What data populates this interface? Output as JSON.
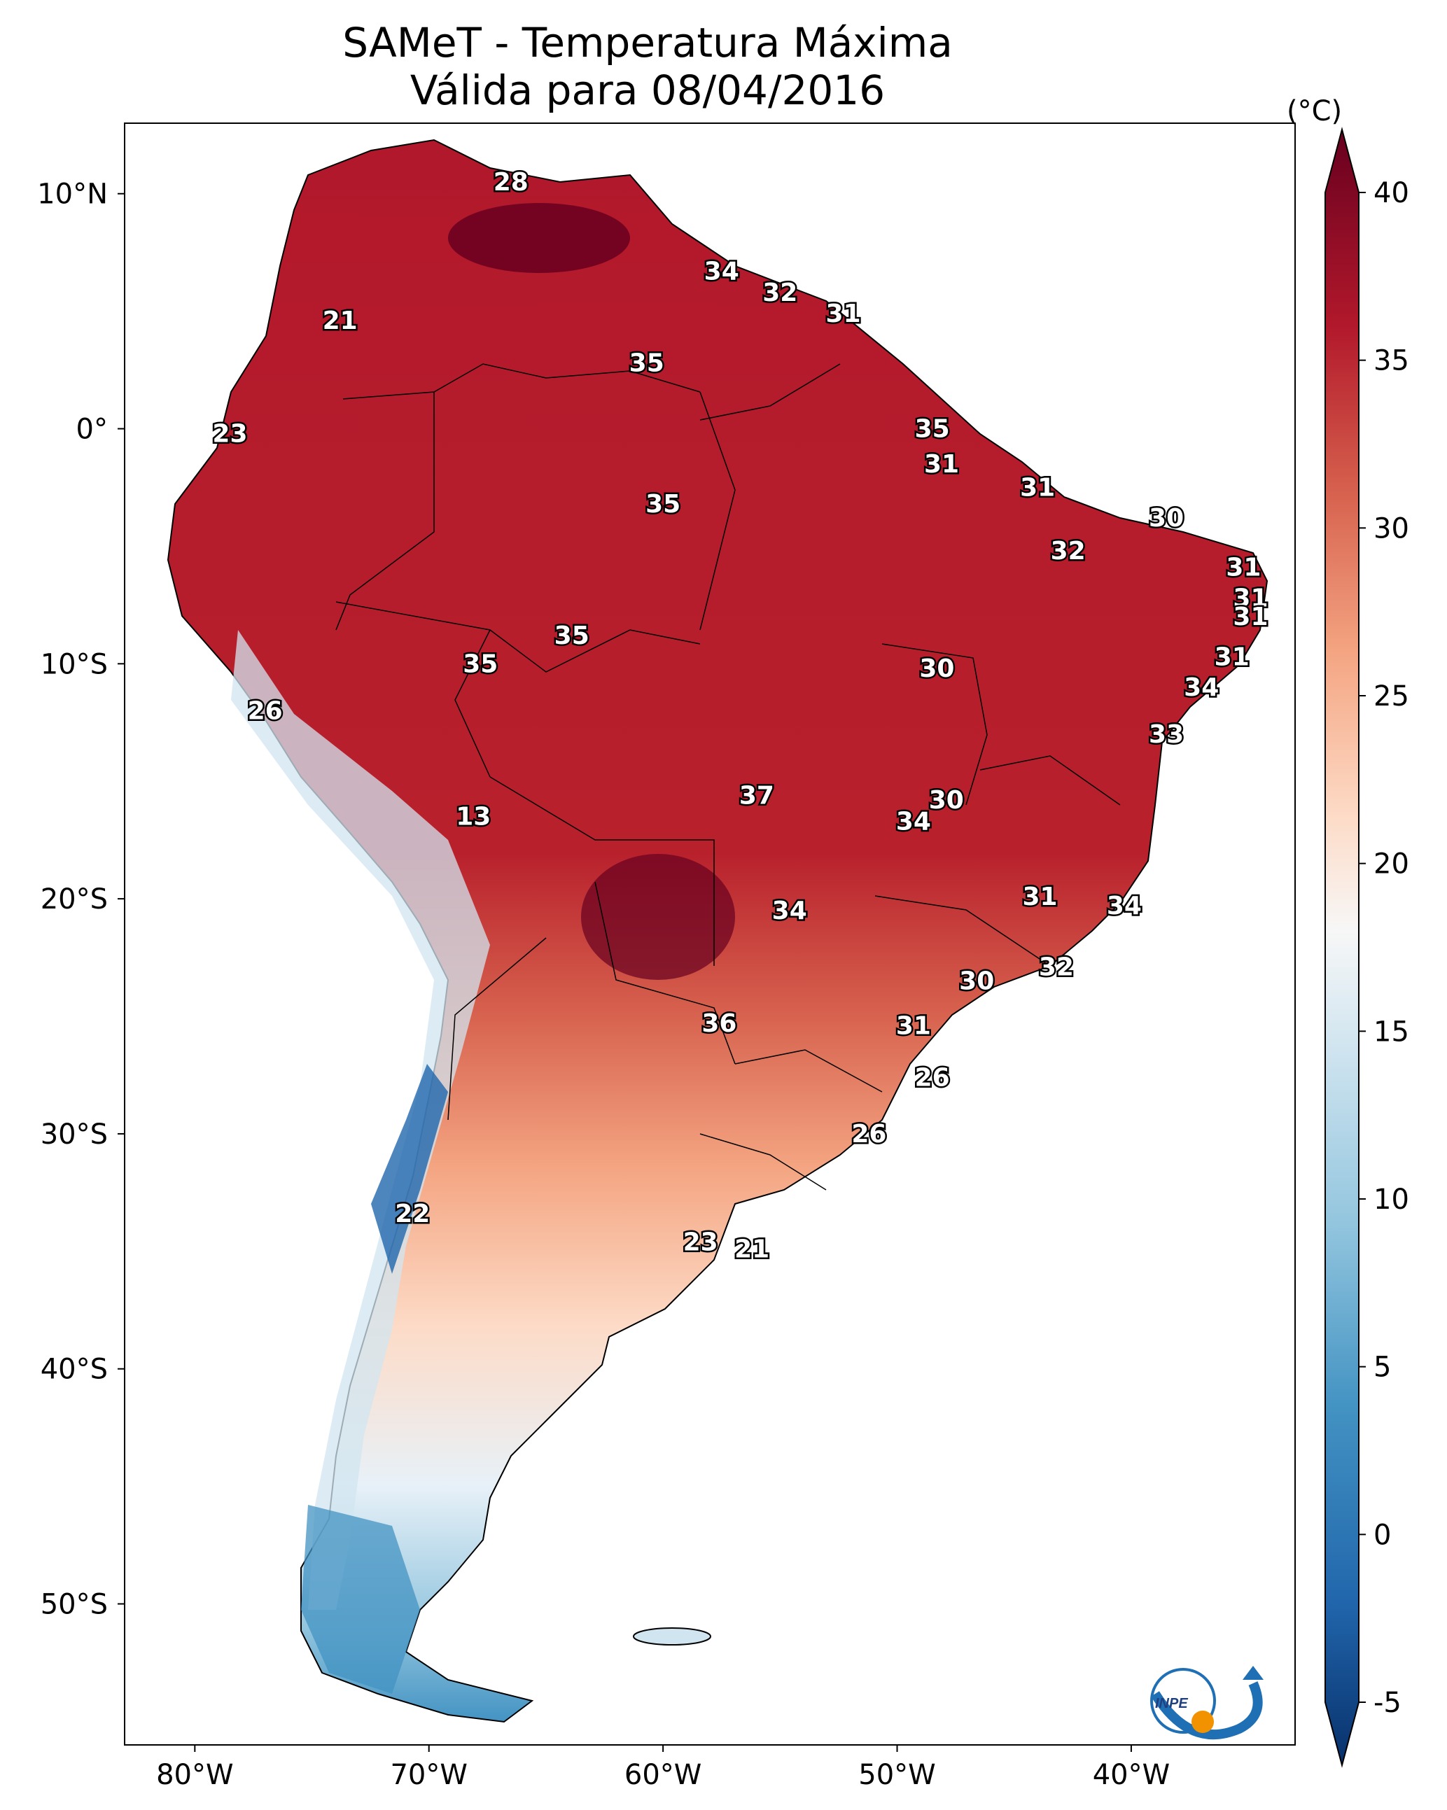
{
  "title": {
    "line1": "SAMeT - Temperatura Máxima",
    "line2": "Válida para 08/04/2016"
  },
  "colorbar": {
    "unit": "(°C)",
    "ticks": [
      "40",
      "35",
      "30",
      "25",
      "20",
      "15",
      "10",
      "5",
      "0",
      "-5"
    ],
    "range": [
      -5,
      40
    ],
    "colors": [
      "#08306b",
      "#2166ac",
      "#4393c3",
      "#92c5de",
      "#d1e5f0",
      "#f7f7f7",
      "#fddbc7",
      "#f4a582",
      "#d6604d",
      "#b2182b",
      "#67001f"
    ]
  },
  "axes": {
    "lon_labels": [
      "80°W",
      "70°W",
      "60°W",
      "50°W",
      "40°W"
    ],
    "lat_labels": [
      "10°N",
      "0°",
      "10°S",
      "20°S",
      "30°S",
      "40°S",
      "50°S"
    ],
    "lon_range": [
      -83,
      -33
    ],
    "lat_range": [
      -56,
      13
    ]
  },
  "logo": {
    "text": "INPE"
  },
  "chart_data": {
    "type": "heatmap",
    "variable": "Temperatura Máxima",
    "unit": "°C",
    "points": [
      {
        "lon": -66.5,
        "lat": 10.5,
        "value": "28"
      },
      {
        "lon": -57.5,
        "lat": 6.7,
        "value": "34"
      },
      {
        "lon": -55.0,
        "lat": 5.8,
        "value": "32"
      },
      {
        "lon": -52.3,
        "lat": 4.9,
        "value": "31"
      },
      {
        "lon": -60.7,
        "lat": 2.8,
        "value": "35"
      },
      {
        "lon": -73.8,
        "lat": 4.6,
        "value": "21"
      },
      {
        "lon": -48.5,
        "lat": -0.0,
        "value": "35"
      },
      {
        "lon": -78.5,
        "lat": -0.2,
        "value": "23"
      },
      {
        "lon": -48.1,
        "lat": -1.5,
        "value": "31"
      },
      {
        "lon": -44.0,
        "lat": -2.5,
        "value": "31"
      },
      {
        "lon": -60.0,
        "lat": -3.2,
        "value": "35"
      },
      {
        "lon": -38.5,
        "lat": -3.8,
        "value": "30"
      },
      {
        "lon": -42.7,
        "lat": -5.2,
        "value": "32"
      },
      {
        "lon": -35.2,
        "lat": -5.9,
        "value": "31"
      },
      {
        "lon": -34.9,
        "lat": -7.2,
        "value": "31"
      },
      {
        "lon": -34.9,
        "lat": -8.0,
        "value": "31"
      },
      {
        "lon": -63.9,
        "lat": -8.8,
        "value": "35"
      },
      {
        "lon": -67.8,
        "lat": -10.0,
        "value": "35"
      },
      {
        "lon": -48.3,
        "lat": -10.2,
        "value": "30"
      },
      {
        "lon": -35.7,
        "lat": -9.7,
        "value": "31"
      },
      {
        "lon": -37.0,
        "lat": -11.0,
        "value": "34"
      },
      {
        "lon": -77.0,
        "lat": -12.0,
        "value": "26"
      },
      {
        "lon": -38.5,
        "lat": -13.0,
        "value": "33"
      },
      {
        "lon": -56.0,
        "lat": -15.6,
        "value": "37"
      },
      {
        "lon": -47.9,
        "lat": -15.8,
        "value": "30"
      },
      {
        "lon": -49.3,
        "lat": -16.7,
        "value": "34"
      },
      {
        "lon": -68.1,
        "lat": -16.5,
        "value": "13"
      },
      {
        "lon": -43.9,
        "lat": -19.9,
        "value": "31"
      },
      {
        "lon": -40.3,
        "lat": -20.3,
        "value": "34"
      },
      {
        "lon": -54.6,
        "lat": -20.5,
        "value": "34"
      },
      {
        "lon": -43.2,
        "lat": -22.9,
        "value": "32"
      },
      {
        "lon": -46.6,
        "lat": -23.5,
        "value": "30"
      },
      {
        "lon": -57.6,
        "lat": -25.3,
        "value": "36"
      },
      {
        "lon": -49.3,
        "lat": -25.4,
        "value": "31"
      },
      {
        "lon": -48.5,
        "lat": -27.6,
        "value": "26"
      },
      {
        "lon": -51.2,
        "lat": -30.0,
        "value": "26"
      },
      {
        "lon": -70.7,
        "lat": -33.4,
        "value": "22"
      },
      {
        "lon": -58.4,
        "lat": -34.6,
        "value": "23"
      },
      {
        "lon": -56.2,
        "lat": -34.9,
        "value": "21"
      }
    ]
  }
}
